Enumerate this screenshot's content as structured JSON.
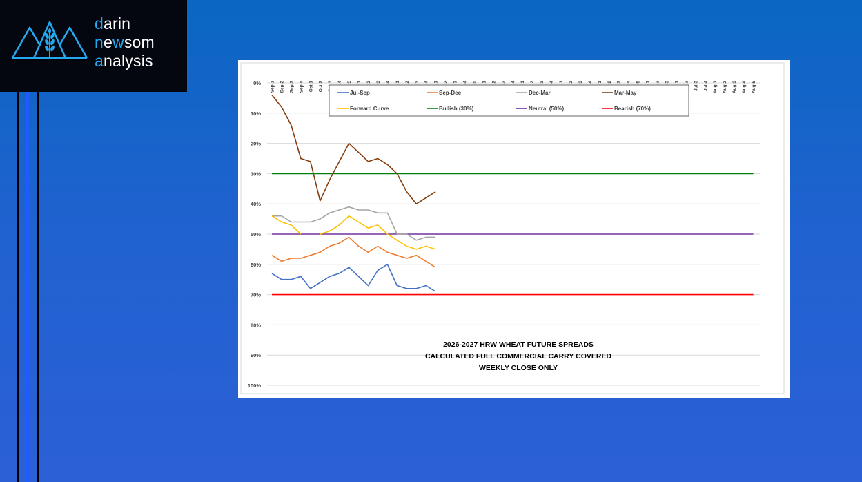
{
  "brand": {
    "line1": {
      "accent": "d",
      "rest": "arin"
    },
    "line2": {
      "part1": "n",
      "part2": "e",
      "part3": "w",
      "part4": "som"
    },
    "line3": {
      "accent": "a",
      "rest": "nalysis"
    },
    "accent_color": "#24a8f0",
    "icon": "mountain-wheat-logo-icon"
  },
  "colors": {
    "background": "#1f62cf",
    "logo_bg": "#04070f"
  },
  "chart_data": {
    "type": "line",
    "title_lines": [
      "2026-2027 HRW WHEAT FUTURE SPREADS",
      "CALCULATED FULL COMMERCIAL CARRY COVERED",
      "WEEKLY CLOSE ONLY"
    ],
    "x_ticks": [
      "Sep 1",
      "Sep 2",
      "Sep 3",
      "Sep 4",
      "Oct 1",
      "Oct 2",
      "Oct 3",
      "Oct 4",
      "Oct 5",
      "Nov 1",
      "Nov 2",
      "Nov 3",
      "Nov 4",
      "Dec 1",
      "Dec 2",
      "Dec 3",
      "Dec 4",
      "Jan 1",
      "Jan 2",
      "Jan 3",
      "Jan 4",
      "Jan 5",
      "Feb 1",
      "Feb 2",
      "Feb 3",
      "Feb 4",
      "Mar 1",
      "Mar 2",
      "Mar 3",
      "Mar 4",
      "Apr 1",
      "Apr 2",
      "Apr 3",
      "Apr 4",
      "May 1",
      "May 2",
      "May 3",
      "May 4",
      "May 5",
      "Jun 1",
      "Jun 2",
      "Jun 3",
      "Jul 1",
      "Jul 2",
      "Jul 3",
      "Jul 4",
      "Aug 1",
      "Aug 2",
      "Aug 3",
      "Aug 4",
      "Aug 5"
    ],
    "y_ticks": [
      "0%",
      "10%",
      "20%",
      "30%",
      "40%",
      "50%",
      "60%",
      "70%",
      "80%",
      "90%",
      "100%"
    ],
    "ylim": [
      0,
      100
    ],
    "y_inverted": true,
    "grid": true,
    "legend_position": "top",
    "series": [
      {
        "name": "Jul-Sep",
        "color": "#4472c4",
        "values": [
          63,
          65,
          65,
          64,
          68,
          66,
          64,
          63,
          61,
          64,
          67,
          62,
          60,
          67,
          68,
          68,
          67,
          69
        ]
      },
      {
        "name": "Sep-Dec",
        "color": "#ed7d31",
        "values": [
          57,
          59,
          58,
          58,
          57,
          56,
          54,
          53,
          51,
          54,
          56,
          54,
          56,
          57,
          58,
          57,
          59,
          61
        ]
      },
      {
        "name": "Dec-Mar",
        "color": "#a5a5a5",
        "values": [
          44,
          44,
          46,
          46,
          46,
          45,
          43,
          42,
          41,
          42,
          42,
          43,
          43,
          50,
          50,
          52,
          51,
          51
        ]
      },
      {
        "name": "Mar-May",
        "color": "#843c0c",
        "values": [
          4,
          8,
          14,
          25,
          26,
          39,
          32,
          26,
          20,
          23,
          26,
          25,
          27,
          30,
          36,
          40,
          38,
          36
        ]
      },
      {
        "name": "Forward Curve",
        "color": "#ffc000",
        "values": [
          44,
          46,
          47,
          50,
          null,
          50,
          49,
          47,
          44,
          46,
          48,
          47,
          50,
          52,
          54,
          55,
          54,
          55
        ]
      },
      {
        "name": "Bullish (30%)",
        "color": "#00800c",
        "constant": 30
      },
      {
        "name": "Neutral (50%)",
        "color": "#7030a0",
        "constant": 50
      },
      {
        "name": "Bearish (70%)",
        "color": "#ff0000",
        "constant": 70
      }
    ]
  }
}
